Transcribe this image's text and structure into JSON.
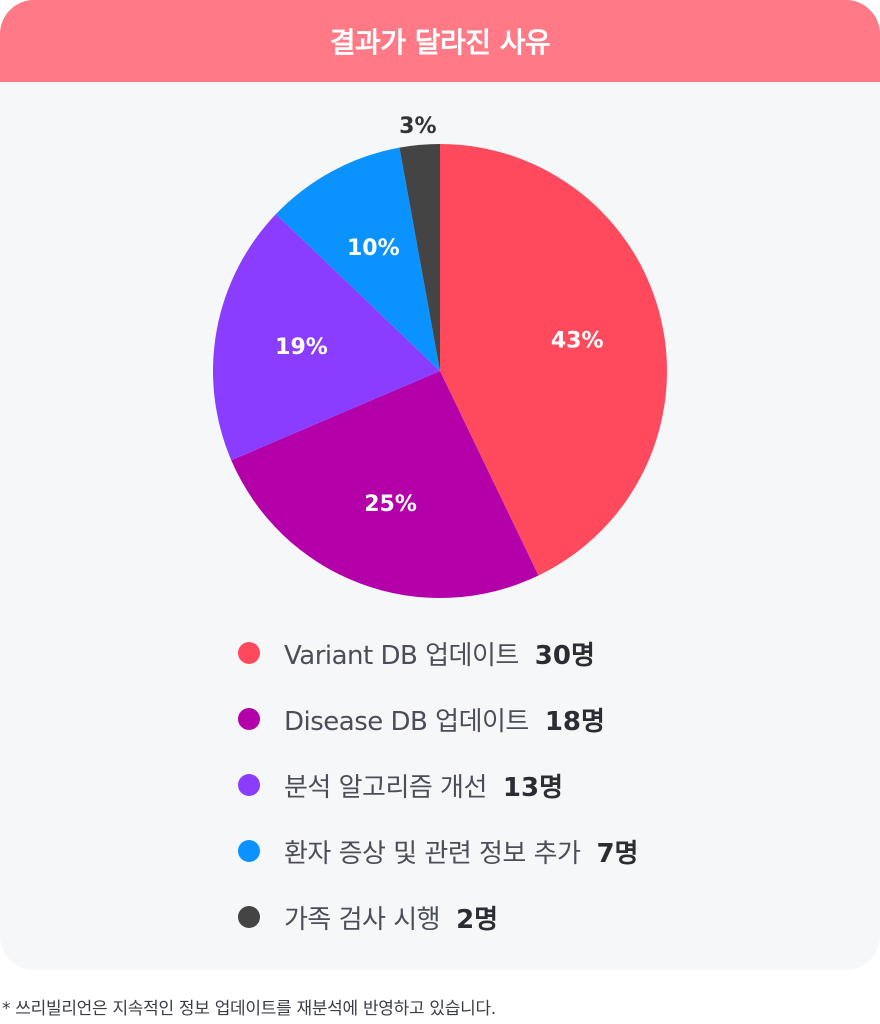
{
  "header": {
    "title": "결과가 달라진 사유"
  },
  "chart_data": {
    "type": "pie",
    "title": "결과가 달라진 사유",
    "slices": [
      {
        "label": "Variant DB 업데이트",
        "count_label": "30명",
        "value": 30,
        "percent_label": "43%",
        "color": "#ff4a5e"
      },
      {
        "label": "Disease DB 업데이트",
        "count_label": "18명",
        "value": 18,
        "percent_label": "25%",
        "color": "#b300a8"
      },
      {
        "label": "분석 알고리즘 개선",
        "count_label": "13명",
        "value": 13,
        "percent_label": "19%",
        "color": "#8a3cff"
      },
      {
        "label": "환자 증상 및 관련 정보 추가",
        "count_label": "7명",
        "value": 7,
        "percent_label": "10%",
        "color": "#0a93ff"
      },
      {
        "label": "가족 검사 시행",
        "count_label": "2명",
        "value": 2,
        "percent_label": "3%",
        "color": "#444444"
      }
    ],
    "start_angle": "12 o'clock",
    "direction": "clockwise",
    "legend_position": "bottom"
  },
  "footnote": "* 쓰리빌리언은 지속적인 정보 업데이트를 재분석에 반영하고 있습니다."
}
